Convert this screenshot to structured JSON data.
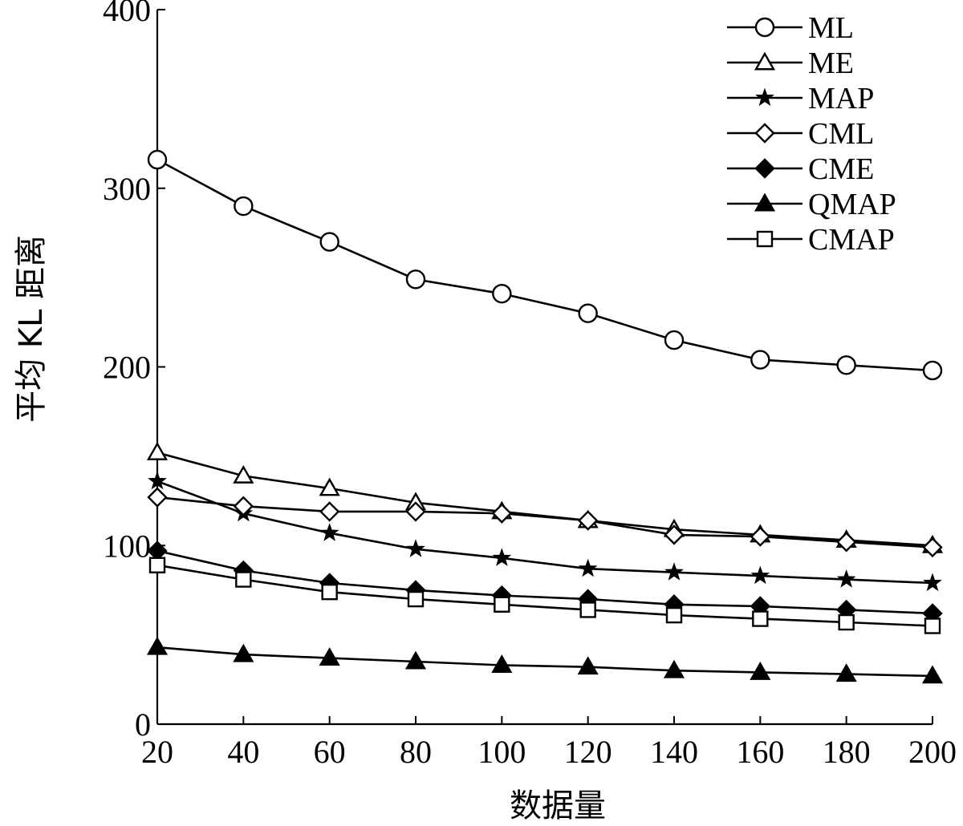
{
  "chart_data": {
    "type": "line",
    "xlabel": "数据量",
    "ylabel": "平均 KL 距离",
    "x": [
      20,
      40,
      60,
      80,
      100,
      120,
      140,
      160,
      180,
      200
    ],
    "xticks": [
      20,
      40,
      60,
      80,
      100,
      120,
      140,
      160,
      180,
      200
    ],
    "yticks": [
      0,
      100,
      200,
      300,
      400
    ],
    "xlim": [
      20,
      200
    ],
    "ylim": [
      0,
      400
    ],
    "grid": false,
    "legend_position": "top-right",
    "series": [
      {
        "name": "ML",
        "marker": "circle-open",
        "values": [
          316,
          290,
          270,
          249,
          241,
          230,
          215,
          204,
          201,
          198
        ]
      },
      {
        "name": "ME",
        "marker": "triangle-open",
        "values": [
          152,
          139,
          132,
          124,
          119,
          114,
          109,
          106,
          103,
          100
        ]
      },
      {
        "name": "MAP",
        "marker": "star",
        "values": [
          136,
          118,
          107,
          98,
          93,
          87,
          85,
          83,
          81,
          79
        ]
      },
      {
        "name": "CML",
        "marker": "diamond-open",
        "values": [
          127,
          122,
          119,
          119,
          118,
          114,
          106,
          105,
          102,
          99
        ]
      },
      {
        "name": "CME",
        "marker": "diamond-filled",
        "values": [
          97,
          86,
          79,
          75,
          72,
          70,
          67,
          66,
          64,
          62
        ]
      },
      {
        "name": "QMAP",
        "marker": "triangle-filled",
        "values": [
          43,
          39,
          37,
          35,
          33,
          32,
          30,
          29,
          28,
          27
        ]
      },
      {
        "name": "CMAP",
        "marker": "square-open",
        "values": [
          89,
          81,
          74,
          70,
          67,
          64,
          61,
          59,
          57,
          55
        ]
      }
    ]
  }
}
